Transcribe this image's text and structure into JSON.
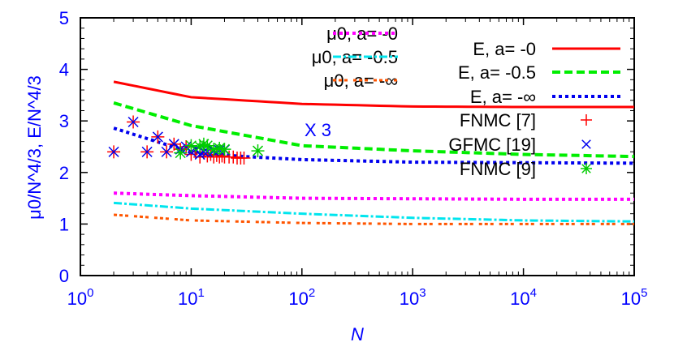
{
  "chart_data": {
    "type": "line",
    "xlabel": "N",
    "ylabel": "μ0/N^4/3, E/N^4/3",
    "xscale": "log",
    "xlim": [
      1,
      100000
    ],
    "ylim": [
      0,
      5
    ],
    "xticks": [
      "10^0",
      "10^1",
      "10^2",
      "10^3",
      "10^4",
      "10^5"
    ],
    "yticks": [
      "0",
      "1",
      "2",
      "3",
      "4",
      "5"
    ],
    "annotation": "X 3",
    "grid": false,
    "legend_placement": "top-right",
    "series": [
      {
        "name": "μ0, a= -0",
        "style": "dotted",
        "color": "#ff00ff",
        "x": [
          2,
          10,
          100,
          1000,
          10000,
          100000
        ],
        "y": [
          1.6,
          1.55,
          1.5,
          1.49,
          1.48,
          1.48
        ]
      },
      {
        "name": "μ0, a= -0.5",
        "style": "dashdot",
        "color": "#00e5ee",
        "x": [
          2,
          10,
          100,
          1000,
          10000,
          100000
        ],
        "y": [
          1.41,
          1.3,
          1.2,
          1.12,
          1.07,
          1.05
        ]
      },
      {
        "name": "μ0, a= -∞",
        "style": "dotted-dash",
        "color": "#ff5500",
        "x": [
          2,
          10,
          100,
          1000,
          10000,
          100000
        ],
        "y": [
          1.18,
          1.07,
          1.02,
          1.0,
          1.0,
          1.0
        ]
      },
      {
        "name": "E, a= -0",
        "style": "solid",
        "color": "#ff0000",
        "x": [
          2,
          10,
          100,
          1000,
          10000,
          100000
        ],
        "y": [
          3.76,
          3.46,
          3.33,
          3.28,
          3.27,
          3.27
        ]
      },
      {
        "name": "E, a= -0.5",
        "style": "dashed",
        "color": "#00ee00",
        "x": [
          2,
          10,
          100,
          1000,
          10000,
          100000
        ],
        "y": [
          3.35,
          2.91,
          2.52,
          2.42,
          2.35,
          2.31
        ]
      },
      {
        "name": "E, a= -∞",
        "style": "dotted",
        "color": "#0000ee",
        "x": [
          2,
          10,
          30,
          100,
          1000,
          100000
        ],
        "y": [
          2.86,
          2.39,
          2.31,
          2.25,
          2.2,
          2.18
        ]
      },
      {
        "name": "FNMC [7]",
        "style": "points",
        "marker": "plus",
        "color": "#ff0000",
        "x": [
          2,
          3,
          4,
          5,
          6,
          7,
          8,
          9,
          10,
          11,
          12,
          13,
          14,
          15,
          16,
          17,
          18,
          19,
          20,
          22,
          24,
          26,
          28,
          30
        ],
        "y": [
          2.4,
          2.98,
          2.4,
          2.69,
          2.4,
          2.55,
          2.45,
          2.5,
          2.35,
          2.4,
          2.3,
          2.38,
          2.32,
          2.35,
          2.3,
          2.33,
          2.3,
          2.32,
          2.3,
          2.3,
          2.3,
          2.28,
          2.28,
          2.28
        ]
      },
      {
        "name": "GFMC [19]",
        "style": "points",
        "marker": "cross",
        "color": "#0000ee",
        "x": [
          2,
          3,
          4,
          5,
          6,
          7,
          8,
          9,
          10,
          11,
          12,
          13,
          14,
          16,
          18,
          20
        ],
        "y": [
          2.4,
          2.98,
          2.4,
          2.69,
          2.4,
          2.55,
          2.45,
          2.5,
          2.4,
          2.45,
          2.35,
          2.4,
          2.4,
          2.42,
          2.43,
          2.44
        ]
      },
      {
        "name": "FNMC [9]",
        "style": "points",
        "marker": "star",
        "color": "#00cc00",
        "x": [
          8,
          10,
          12,
          13,
          14,
          16,
          18,
          20,
          40
        ],
        "y": [
          2.38,
          2.52,
          2.5,
          2.55,
          2.52,
          2.45,
          2.47,
          2.45,
          2.42
        ]
      }
    ]
  }
}
